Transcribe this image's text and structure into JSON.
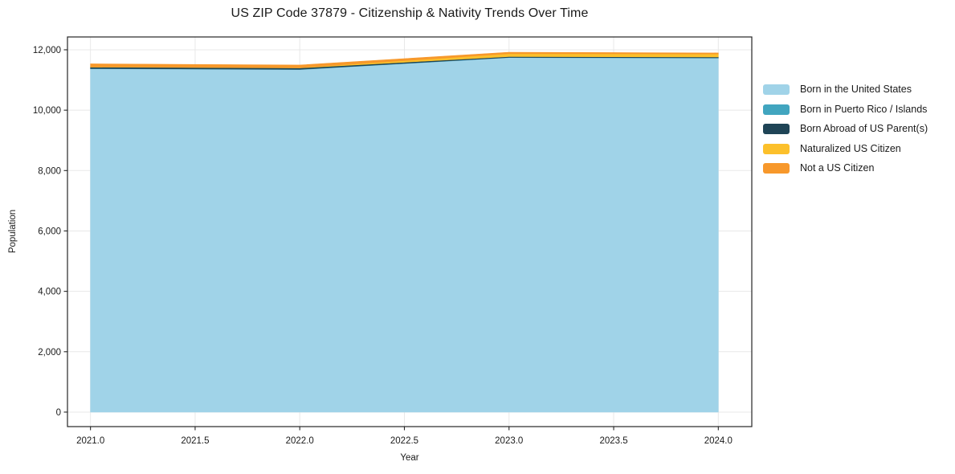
{
  "chart_data": {
    "type": "area",
    "stacked": true,
    "title": "US ZIP Code 37879 - Citizenship & Nativity Trends Over Time",
    "xlabel": "Year",
    "ylabel": "Population",
    "x": [
      2021,
      2022,
      2023,
      2024
    ],
    "series": [
      {
        "name": "Born in the United States",
        "color": "#a0d3e8",
        "values": [
          11372,
          11345,
          11740,
          11725
        ]
      },
      {
        "name": "Born in Puerto Rico / Islands",
        "color": "#41a5bf",
        "values": [
          8,
          8,
          8,
          8
        ]
      },
      {
        "name": "Born Abroad of US Parent(s)",
        "color": "#1f4456",
        "values": [
          45,
          45,
          28,
          28
        ]
      },
      {
        "name": "Naturalized US Citizen",
        "color": "#fcc02b",
        "values": [
          10,
          12,
          95,
          100
        ]
      },
      {
        "name": "Not a US Citizen",
        "color": "#f7982b",
        "values": [
          100,
          85,
          48,
          35
        ]
      }
    ],
    "xticks": [
      2021.0,
      2021.5,
      2022.0,
      2022.5,
      2023.0,
      2023.5,
      2024.0
    ],
    "yticks": [
      0,
      2000,
      4000,
      6000,
      8000,
      10000,
      12000
    ],
    "xlim": [
      2020.89,
      2024.16
    ],
    "ylim": [
      -480,
      12425
    ],
    "grid": true,
    "legend_position": "right-outside",
    "colors": {
      "grid": "#e8e8e8",
      "frame": "#262626",
      "background": "#ffffff",
      "text": "#1a1a1a"
    }
  }
}
